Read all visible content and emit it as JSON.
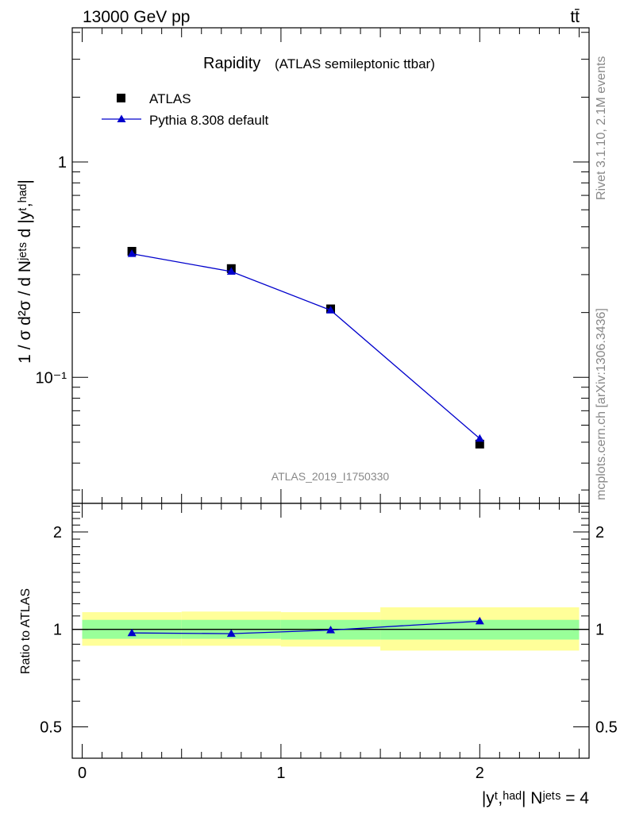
{
  "header": {
    "energy_label": "13000 GeV pp",
    "process_label": "tt̄"
  },
  "side_labels": {
    "rivet": "Rivet 3.1.10,  2.1M events",
    "mcplots": "mcplots.cern.ch [arXiv:1306.3436]"
  },
  "watermark": "ATLAS_2019_I1750330",
  "main_plot": {
    "title_main": "Rapidity",
    "title_sub": "(ATLAS semileptonic ttbar)",
    "ylabel": "1 / σ d²σ / d Nʲᵉᵗˢ d |yᵗ,ʰᵃᵈ|",
    "y_ticks": [
      "1",
      "10⁻¹"
    ]
  },
  "ratio_plot": {
    "ylabel": "Ratio to ATLAS",
    "y_ticks": [
      "2",
      "1",
      "0.5"
    ]
  },
  "xlabel": "|yᵗ,ʰᵃᵈ| Nʲᵉᵗˢ = 4",
  "x_ticks": [
    "0",
    "1",
    "2"
  ],
  "legend": {
    "data_label": "ATLAS",
    "mc_label": "Pythia 8.308 default"
  },
  "colors": {
    "mc": "#0000cc",
    "band_inner": "#99ff99",
    "band_outer": "#ffff99",
    "watermark": "#888888"
  },
  "chart_data": [
    {
      "type": "scatter",
      "title": "Rapidity (ATLAS semileptonic ttbar)",
      "xlabel": "|y^{t,had}| N^{jets} = 4",
      "ylabel": "1 / σ d²σ / d N^{jets} d |y^{t,had}|",
      "xlim": [
        -0.05,
        2.55
      ],
      "ylim": [
        0.026,
        4.2
      ],
      "yscale": "log",
      "x_bin_edges": [
        0,
        0.5,
        1.0,
        1.5,
        2.5
      ],
      "series": [
        {
          "name": "ATLAS",
          "marker": "square",
          "x": [
            0.25,
            0.75,
            1.25,
            2.0
          ],
          "y": [
            0.385,
            0.32,
            0.208,
            0.049
          ]
        },
        {
          "name": "Pythia 8.308 default",
          "marker": "triangle",
          "x": [
            0.25,
            0.75,
            1.25,
            2.0
          ],
          "y": [
            0.375,
            0.31,
            0.205,
            0.052
          ]
        }
      ]
    },
    {
      "type": "line",
      "ylabel": "Ratio to ATLAS",
      "xlim": [
        -0.05,
        2.55
      ],
      "ylim": [
        0.4,
        2.45
      ],
      "yscale": "log",
      "bands": [
        {
          "x0": 0.0,
          "x1": 0.5,
          "inner": [
            0.935,
            1.07
          ],
          "outer": [
            0.89,
            1.13
          ]
        },
        {
          "x0": 0.5,
          "x1": 1.0,
          "inner": [
            0.935,
            1.07
          ],
          "outer": [
            0.89,
            1.135
          ]
        },
        {
          "x0": 1.0,
          "x1": 1.5,
          "inner": [
            0.93,
            1.07
          ],
          "outer": [
            0.885,
            1.13
          ]
        },
        {
          "x0": 1.5,
          "x1": 2.5,
          "inner": [
            0.93,
            1.07
          ],
          "outer": [
            0.86,
            1.17
          ]
        }
      ],
      "series": [
        {
          "name": "Pythia 8.308 default",
          "x": [
            0.25,
            0.75,
            1.25,
            2.0
          ],
          "y": [
            0.975,
            0.97,
            0.995,
            1.06
          ]
        }
      ]
    }
  ]
}
